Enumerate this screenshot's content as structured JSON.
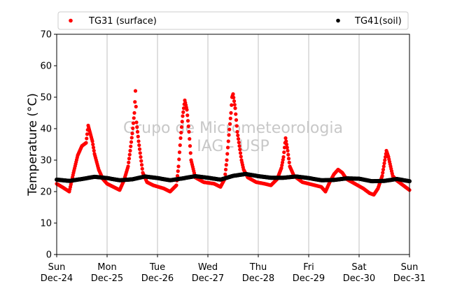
{
  "chart_data": {
    "type": "scatter",
    "title": "",
    "xlabel": "",
    "ylabel": "Temperature (°C)",
    "ylim": [
      0,
      70
    ],
    "yticks": [
      0,
      10,
      20,
      30,
      40,
      50,
      60,
      70
    ],
    "xlim": [
      "Dec-24",
      "Dec-31"
    ],
    "xticks": [
      {
        "day": "Sun",
        "date": "Dec-24"
      },
      {
        "day": "Mon",
        "date": "Dec-25"
      },
      {
        "day": "Tue",
        "date": "Dec-26"
      },
      {
        "day": "Wed",
        "date": "Dec-27"
      },
      {
        "day": "Thu",
        "date": "Dec-28"
      },
      {
        "day": "Fri",
        "date": "Dec-29"
      },
      {
        "day": "Sat",
        "date": "Dec-30"
      },
      {
        "day": "Sun",
        "date": "Dec-31"
      }
    ],
    "grid": "vertical",
    "legend_position": "top",
    "watermark": [
      "Grupo de Micrometeorologia",
      "IAG - USP"
    ],
    "series": [
      {
        "name": "TG31 (surface)",
        "color": "#ff0000",
        "points": [
          [
            "Dec-24 00:00",
            22.5
          ],
          [
            "Dec-24 03:00",
            21.3
          ],
          [
            "Dec-24 06:00",
            20.0
          ],
          [
            "Dec-24 08:00",
            26.0
          ],
          [
            "Dec-24 10:00",
            31.5
          ],
          [
            "Dec-24 12:00",
            34.5
          ],
          [
            "Dec-24 14:00",
            35.5
          ],
          [
            "Dec-24 15:00",
            41.0
          ],
          [
            "Dec-24 16:00",
            38.5
          ],
          [
            "Dec-24 17:00",
            36.0
          ],
          [
            "Dec-24 18:00",
            32.0
          ],
          [
            "Dec-24 20:00",
            27.0
          ],
          [
            "Dec-24 22:00",
            24.0
          ],
          [
            "Dec-25 00:00",
            22.5
          ],
          [
            "Dec-25 03:00",
            21.5
          ],
          [
            "Dec-25 06:00",
            20.5
          ],
          [
            "Dec-25 08:00",
            23.5
          ],
          [
            "Dec-25 10:00",
            28.0
          ],
          [
            "Dec-25 11:00",
            33.0
          ],
          [
            "Dec-25 12:00",
            38.5
          ],
          [
            "Dec-25 13:00",
            45.0
          ],
          [
            "Dec-25 13:30",
            52.0
          ],
          [
            "Dec-25 14:00",
            42.0
          ],
          [
            "Dec-25 15:00",
            36.0
          ],
          [
            "Dec-25 16:00",
            31.0
          ],
          [
            "Dec-25 17:00",
            26.0
          ],
          [
            "Dec-25 19:00",
            23.0
          ],
          [
            "Dec-25 22:00",
            22.0
          ],
          [
            "Dec-26 03:00",
            21.0
          ],
          [
            "Dec-26 06:00",
            20.0
          ],
          [
            "Dec-26 09:00",
            22.0
          ],
          [
            "Dec-26 10:00",
            28.0
          ],
          [
            "Dec-26 11:00",
            37.0
          ],
          [
            "Dec-26 12:00",
            44.0
          ],
          [
            "Dec-26 13:00",
            49.0
          ],
          [
            "Dec-26 14:00",
            46.0
          ],
          [
            "Dec-26 15:00",
            39.0
          ],
          [
            "Dec-26 16:00",
            30.0
          ],
          [
            "Dec-26 18:00",
            24.5
          ],
          [
            "Dec-26 22:00",
            23.0
          ],
          [
            "Dec-27 03:00",
            22.5
          ],
          [
            "Dec-27 06:00",
            21.5
          ],
          [
            "Dec-27 08:00",
            24.0
          ],
          [
            "Dec-27 09:00",
            30.0
          ],
          [
            "Dec-27 10:00",
            38.0
          ],
          [
            "Dec-27 11:00",
            45.0
          ],
          [
            "Dec-27 11:30",
            50.0
          ],
          [
            "Dec-27 12:00",
            51.0
          ],
          [
            "Dec-27 13:00",
            46.5
          ],
          [
            "Dec-27 14:00",
            39.0
          ],
          [
            "Dec-27 15:00",
            34.5
          ],
          [
            "Dec-27 16:00",
            30.0
          ],
          [
            "Dec-27 17:00",
            27.0
          ],
          [
            "Dec-27 19:00",
            24.5
          ],
          [
            "Dec-27 23:00",
            23.0
          ],
          [
            "Dec-28 03:00",
            22.5
          ],
          [
            "Dec-28 06:00",
            22.0
          ],
          [
            "Dec-28 09:00",
            24.0
          ],
          [
            "Dec-28 11:00",
            27.5
          ],
          [
            "Dec-28 12:00",
            31.0
          ],
          [
            "Dec-28 13:00",
            37.0
          ],
          [
            "Dec-28 14:00",
            33.0
          ],
          [
            "Dec-28 15:00",
            28.0
          ],
          [
            "Dec-28 17:00",
            25.0
          ],
          [
            "Dec-28 21:00",
            23.0
          ],
          [
            "Dec-29 03:00",
            22.0
          ],
          [
            "Dec-29 06:00",
            21.5
          ],
          [
            "Dec-29 08:00",
            20.0
          ],
          [
            "Dec-29 10:00",
            23.0
          ],
          [
            "Dec-29 12:00",
            25.5
          ],
          [
            "Dec-29 14:00",
            27.0
          ],
          [
            "Dec-29 16:00",
            26.0
          ],
          [
            "Dec-29 18:00",
            24.0
          ],
          [
            "Dec-29 22:00",
            22.5
          ],
          [
            "Dec-30 02:00",
            21.0
          ],
          [
            "Dec-30 05:00",
            19.5
          ],
          [
            "Dec-30 07:00",
            19.0
          ],
          [
            "Dec-30 09:00",
            21.0
          ],
          [
            "Dec-30 11:00",
            25.0
          ],
          [
            "Dec-30 12:00",
            29.0
          ],
          [
            "Dec-30 13:00",
            33.0
          ],
          [
            "Dec-30 14:00",
            31.0
          ],
          [
            "Dec-30 15:00",
            28.0
          ],
          [
            "Dec-30 16:00",
            25.0
          ],
          [
            "Dec-30 18:00",
            23.5
          ],
          [
            "Dec-30 21:00",
            22.0
          ],
          [
            "Dec-31 00:00",
            20.5
          ]
        ]
      },
      {
        "name": "TG41(soil)",
        "color": "#000000",
        "points": [
          [
            "Dec-24 00:00",
            23.8
          ],
          [
            "Dec-24 06:00",
            23.4
          ],
          [
            "Dec-24 12:00",
            24.0
          ],
          [
            "Dec-24 18:00",
            24.7
          ],
          [
            "Dec-25 00:00",
            24.3
          ],
          [
            "Dec-25 06:00",
            23.6
          ],
          [
            "Dec-25 12:00",
            23.9
          ],
          [
            "Dec-25 18:00",
            24.8
          ],
          [
            "Dec-26 00:00",
            24.3
          ],
          [
            "Dec-26 06:00",
            23.6
          ],
          [
            "Dec-26 12:00",
            24.2
          ],
          [
            "Dec-26 18:00",
            24.9
          ],
          [
            "Dec-27 00:00",
            24.4
          ],
          [
            "Dec-27 06:00",
            23.8
          ],
          [
            "Dec-27 12:00",
            25.0
          ],
          [
            "Dec-27 18:00",
            25.6
          ],
          [
            "Dec-28 00:00",
            24.9
          ],
          [
            "Dec-28 06:00",
            24.4
          ],
          [
            "Dec-28 12:00",
            24.4
          ],
          [
            "Dec-28 18:00",
            24.8
          ],
          [
            "Dec-29 00:00",
            24.3
          ],
          [
            "Dec-29 06:00",
            23.6
          ],
          [
            "Dec-29 12:00",
            23.7
          ],
          [
            "Dec-29 18:00",
            24.2
          ],
          [
            "Dec-30 00:00",
            24.1
          ],
          [
            "Dec-30 06:00",
            23.3
          ],
          [
            "Dec-30 12:00",
            23.4
          ],
          [
            "Dec-30 18:00",
            24.0
          ],
          [
            "Dec-31 00:00",
            23.3
          ]
        ]
      }
    ]
  }
}
